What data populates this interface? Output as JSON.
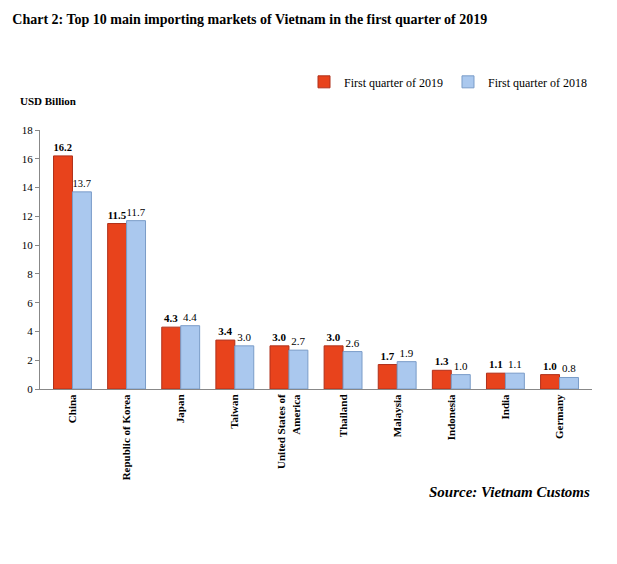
{
  "chart_data": {
    "type": "bar",
    "title": "Chart 2: Top 10 main importing markets of Vietnam in the first quarter of 2019",
    "y_label": "USD Billion",
    "annotations": [
      "Source: Vietnam Customs"
    ],
    "categories": [
      "China",
      "Republic of Korea",
      "Japan",
      "Taiwan",
      "United States of America",
      "Thailand",
      "Malaysia",
      "Indonesia",
      "India",
      "Germany"
    ],
    "series": [
      {
        "name": "First quarter of 2019",
        "color": "#e8431c",
        "values": [
          16.2,
          11.5,
          4.3,
          3.4,
          3.0,
          3.0,
          1.7,
          1.3,
          1.1,
          1.0
        ],
        "value_labels": [
          "16.2",
          "11.5",
          "4.3",
          "3.4",
          "3.0",
          "3.0",
          "1.7",
          "1.3",
          "1.1",
          "1.0"
        ]
      },
      {
        "name": "First quarter of 2018",
        "color": "#aac8ee",
        "values": [
          13.7,
          11.7,
          4.4,
          3.0,
          2.7,
          2.6,
          1.9,
          1.0,
          1.1,
          0.8
        ],
        "value_labels": [
          "13.7",
          "11.7",
          "4.4",
          "3.0",
          "2.7",
          "2.6",
          "1.9",
          "1.0",
          "1.1",
          "0.8"
        ]
      }
    ],
    "ylim": [
      0,
      18
    ],
    "yticks": [
      0,
      2,
      4,
      6,
      8,
      10,
      12,
      14,
      16,
      18
    ],
    "grid": false,
    "legend": "top-right",
    "data_labels": true
  }
}
